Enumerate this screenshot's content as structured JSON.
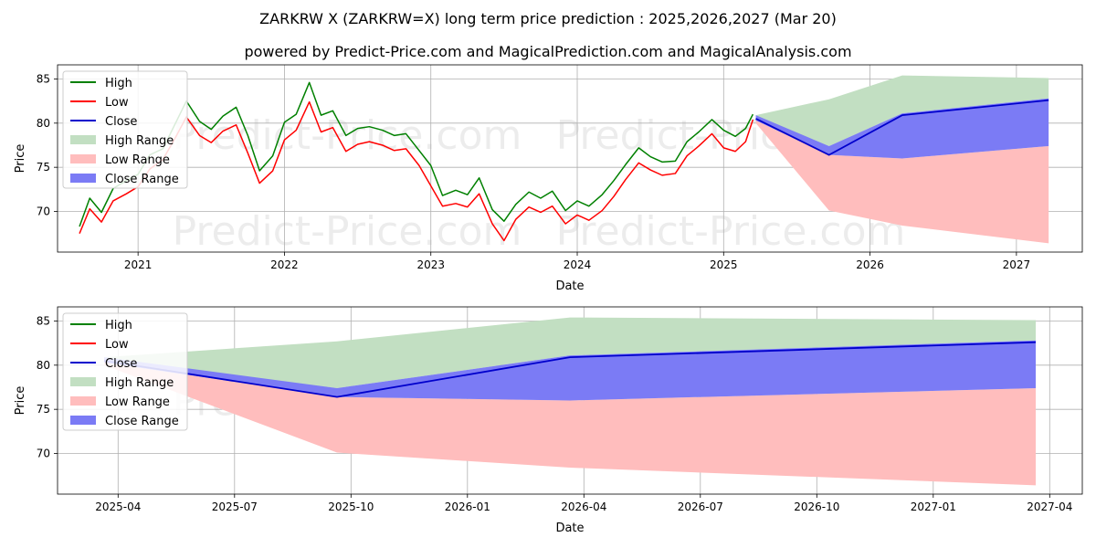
{
  "title": "ZARKRW X (ZARKRW=X) long term price prediction : 2025,2026,2027 (Mar 20)",
  "subtitle": "powered by Predict-Price.com and MagicalPrediction.com and MagicalAnalysis.com",
  "watermark": "Predict-Price.com",
  "colors": {
    "high": "#008000",
    "low": "#ff0000",
    "close": "#0000cc",
    "high_range": "#c2dfc2",
    "low_range": "#ffbdbd",
    "close_range": "#7b7bf5"
  },
  "chart_data": [
    {
      "type": "line",
      "name": "history-and-forecast",
      "xlabel": "Date",
      "ylabel": "Price",
      "xlim": [
        2020.45,
        2027.45
      ],
      "ylim": [
        65.4,
        86.6
      ],
      "yticks": [
        70,
        75,
        80,
        85
      ],
      "xticks": [
        {
          "value": 2021.0,
          "label": "2021"
        },
        {
          "value": 2022.0,
          "label": "2022"
        },
        {
          "value": 2023.0,
          "label": "2023"
        },
        {
          "value": 2024.0,
          "label": "2024"
        },
        {
          "value": 2025.0,
          "label": "2025"
        },
        {
          "value": 2026.0,
          "label": "2026"
        },
        {
          "value": 2027.0,
          "label": "2027"
        }
      ],
      "legend": [
        {
          "key": "high",
          "label": "High",
          "kind": "line"
        },
        {
          "key": "low",
          "label": "Low",
          "kind": "line"
        },
        {
          "key": "close",
          "label": "Close",
          "kind": "line"
        },
        {
          "key": "high_range",
          "label": "High Range",
          "kind": "patch"
        },
        {
          "key": "low_range",
          "label": "Low Range",
          "kind": "patch"
        },
        {
          "key": "close_range",
          "label": "Close Range",
          "kind": "patch"
        }
      ],
      "legend_position": "upper-left",
      "history": {
        "x": [
          2020.6,
          2020.67,
          2020.75,
          2020.83,
          2020.92,
          2021.0,
          2021.08,
          2021.17,
          2021.25,
          2021.33,
          2021.42,
          2021.5,
          2021.58,
          2021.67,
          2021.75,
          2021.83,
          2021.92,
          2022.0,
          2022.08,
          2022.17,
          2022.25,
          2022.33,
          2022.42,
          2022.5,
          2022.58,
          2022.67,
          2022.75,
          2022.83,
          2022.92,
          2023.0,
          2023.08,
          2023.17,
          2023.25,
          2023.33,
          2023.42,
          2023.5,
          2023.58,
          2023.67,
          2023.75,
          2023.83,
          2023.92,
          2024.0,
          2024.08,
          2024.17,
          2024.25,
          2024.33,
          2024.42,
          2024.5,
          2024.58,
          2024.67,
          2024.75,
          2024.83,
          2024.92,
          2025.0,
          2025.08,
          2025.15,
          2025.2
        ],
        "high": [
          68.3,
          71.5,
          69.9,
          72.6,
          73.5,
          74.2,
          76.4,
          77.1,
          79.8,
          82.5,
          80.2,
          79.3,
          80.8,
          81.8,
          78.6,
          74.6,
          76.3,
          80.1,
          81.0,
          84.6,
          80.9,
          81.4,
          78.6,
          79.4,
          79.6,
          79.2,
          78.6,
          78.8,
          76.9,
          75.2,
          71.8,
          72.4,
          71.9,
          73.8,
          70.2,
          68.9,
          70.8,
          72.2,
          71.5,
          72.3,
          70.1,
          71.2,
          70.6,
          71.9,
          73.5,
          75.3,
          77.2,
          76.2,
          75.6,
          75.7,
          77.9,
          79.0,
          80.4,
          79.2,
          78.5,
          79.4,
          81.0
        ],
        "low": [
          67.5,
          70.3,
          68.8,
          71.2,
          72.0,
          72.8,
          74.8,
          75.9,
          78.2,
          80.7,
          78.6,
          77.8,
          79.1,
          79.8,
          76.6,
          73.2,
          74.6,
          78.1,
          79.2,
          82.4,
          79.0,
          79.5,
          76.8,
          77.6,
          77.9,
          77.5,
          76.9,
          77.1,
          75.2,
          72.9,
          70.6,
          70.9,
          70.5,
          72.0,
          68.6,
          66.7,
          69.1,
          70.5,
          69.9,
          70.6,
          68.6,
          69.6,
          69.0,
          70.1,
          71.7,
          73.6,
          75.5,
          74.7,
          74.1,
          74.3,
          76.3,
          77.4,
          78.8,
          77.2,
          76.8,
          77.9,
          80.4
        ]
      },
      "forecast": {
        "x": [
          2025.22,
          2025.72,
          2026.22,
          2027.22
        ],
        "close": [
          80.5,
          76.4,
          80.9,
          82.6
        ],
        "high_range": {
          "upper": [
            80.9,
            82.7,
            85.4,
            85.1
          ],
          "lower": [
            80.6,
            77.4,
            81.1,
            82.8
          ]
        },
        "low_range": {
          "upper": [
            80.3,
            76.4,
            76.0,
            77.4
          ],
          "lower": [
            80.0,
            70.1,
            68.4,
            66.4
          ]
        },
        "close_range": {
          "upper": [
            80.9,
            77.4,
            81.1,
            82.8
          ],
          "lower": [
            80.3,
            76.4,
            76.0,
            77.4
          ]
        }
      }
    },
    {
      "type": "area",
      "name": "forecast-zoom",
      "xlabel": "Date",
      "ylabel": "Price",
      "xlim": [
        2025.12,
        2027.32
      ],
      "ylim": [
        65.4,
        86.6
      ],
      "yticks": [
        70,
        75,
        80,
        85
      ],
      "xticks": [
        {
          "value": 2025.25,
          "label": "2025-04"
        },
        {
          "value": 2025.5,
          "label": "2025-07"
        },
        {
          "value": 2025.75,
          "label": "2025-10"
        },
        {
          "value": 2026.0,
          "label": "2026-01"
        },
        {
          "value": 2026.25,
          "label": "2026-04"
        },
        {
          "value": 2026.5,
          "label": "2026-07"
        },
        {
          "value": 2026.75,
          "label": "2026-10"
        },
        {
          "value": 2027.0,
          "label": "2027-01"
        },
        {
          "value": 2027.25,
          "label": "2027-04"
        }
      ],
      "legend": [
        {
          "key": "high",
          "label": "High",
          "kind": "line"
        },
        {
          "key": "low",
          "label": "Low",
          "kind": "line"
        },
        {
          "key": "close",
          "label": "Close",
          "kind": "line"
        },
        {
          "key": "high_range",
          "label": "High Range",
          "kind": "patch"
        },
        {
          "key": "low_range",
          "label": "Low Range",
          "kind": "patch"
        },
        {
          "key": "close_range",
          "label": "Close Range",
          "kind": "patch"
        }
      ],
      "legend_position": "upper-left",
      "forecast": {
        "x": [
          2025.22,
          2025.72,
          2026.22,
          2027.22
        ],
        "close": [
          80.5,
          76.4,
          80.9,
          82.6
        ],
        "high_range": {
          "upper": [
            80.9,
            82.7,
            85.4,
            85.1
          ],
          "lower": [
            80.6,
            77.4,
            81.1,
            82.8
          ]
        },
        "low_range": {
          "upper": [
            80.3,
            76.4,
            76.0,
            77.4
          ],
          "lower": [
            80.0,
            70.1,
            68.4,
            66.4
          ]
        },
        "close_range": {
          "upper": [
            80.9,
            77.4,
            81.1,
            82.8
          ],
          "lower": [
            80.3,
            76.4,
            76.0,
            77.4
          ]
        }
      }
    }
  ]
}
